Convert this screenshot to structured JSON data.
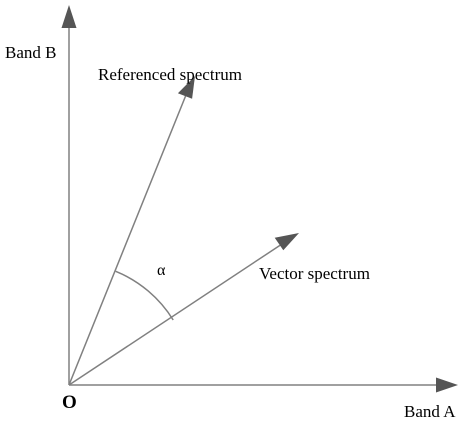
{
  "diagram": {
    "axis_y_label": "Band B",
    "axis_x_label": "Band A",
    "origin_label": "O",
    "vector_referenced_label": "Referenced spectrum",
    "vector_spectrum_label": "Vector spectrum",
    "angle_label": "α",
    "colors": {
      "line": "#808080",
      "arrowhead": "#555555",
      "text": "#000000",
      "background": "#ffffff"
    }
  }
}
